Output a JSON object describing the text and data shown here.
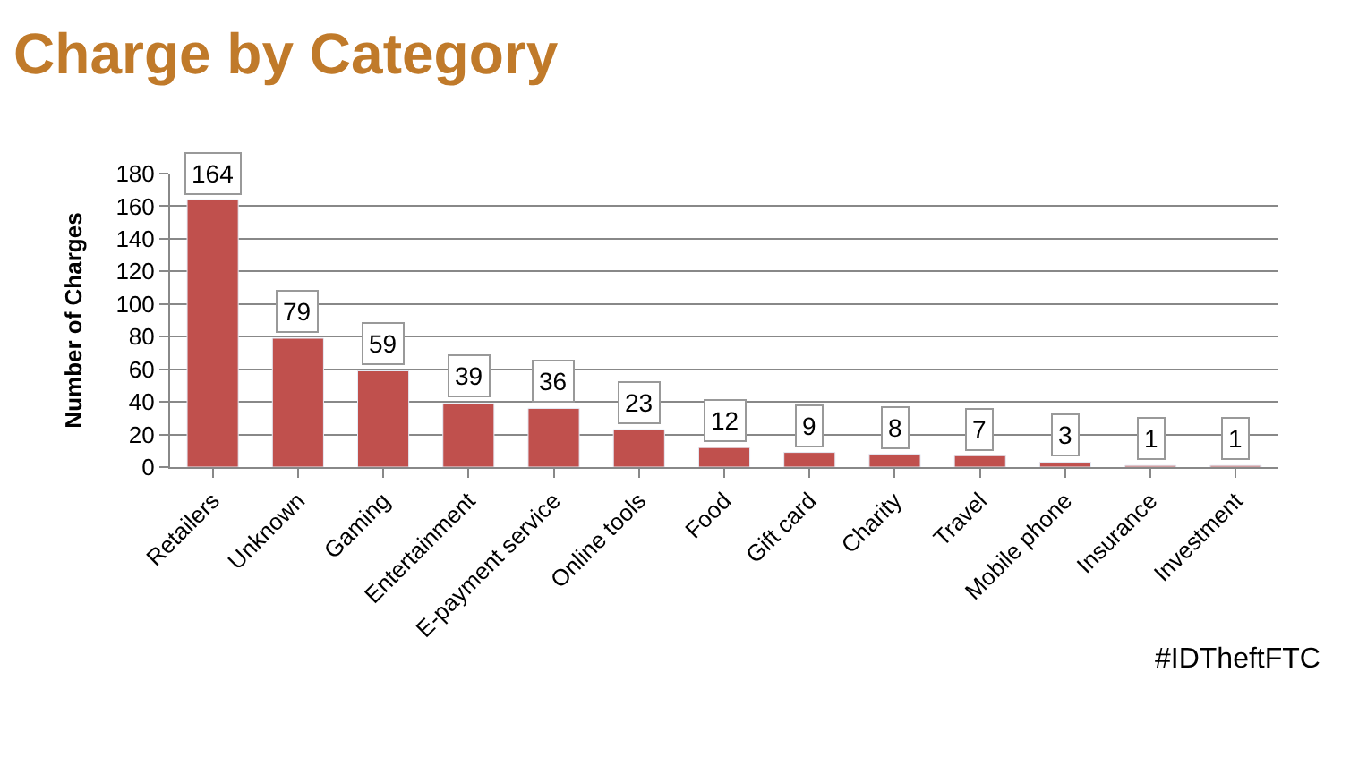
{
  "chart_data": {
    "type": "bar",
    "title": "Charge by Category",
    "ylabel": "Number of Charges",
    "categories": [
      "Retailers",
      "Unknown",
      "Gaming",
      "Entertainment",
      "E-payment service",
      "Online tools",
      "Food",
      "Gift card",
      "Charity",
      "Travel",
      "Mobile phone",
      "Insurance",
      "Investment"
    ],
    "values": [
      164,
      79,
      59,
      39,
      36,
      23,
      12,
      9,
      8,
      7,
      3,
      1,
      1
    ],
    "color": "#c0504d",
    "ylim": [
      0,
      180
    ],
    "yticks": [
      0,
      20,
      40,
      60,
      80,
      100,
      120,
      140,
      160,
      180
    ],
    "grid": "y",
    "data_labels": true,
    "annotations": [
      "#IDTheftFTC"
    ]
  }
}
